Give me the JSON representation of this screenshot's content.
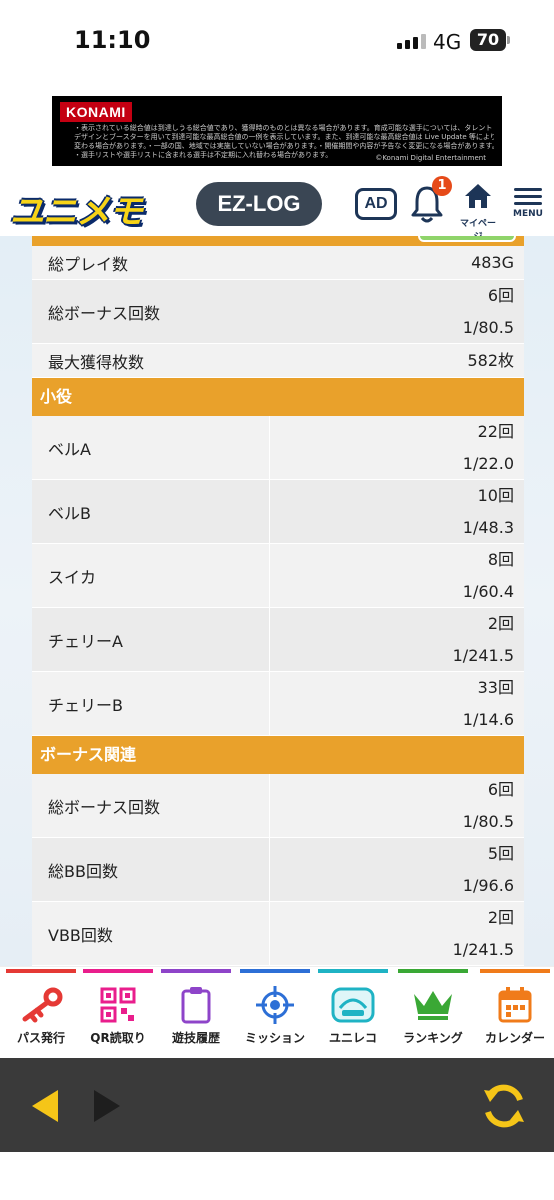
{
  "status_bar": {
    "time": "11:10",
    "network": "4G",
    "battery": "70"
  },
  "banner": {
    "brand": "KONAMI",
    "lines": [
      "・表示されている総合値は到達しうる総合値であり、獲得時のものとは異なる場合があります。育成可能な選手については、タレント",
      "デザインとブースターを用いて到達可能な最高総合値の一例を表示しています。また、到達可能な最高総合値は Live Update 等により",
      "変わる場合があります。・一部の国、地域では実施していない場合があります。・開催期間や内容が予告なく変更になる場合があります。",
      "・選手リストや選手リストに含まれる選手は不定期に入れ替わる場合があります。"
    ],
    "copyright": "©Konami Digital Entertainment"
  },
  "header": {
    "brand": "ユニメモ",
    "ezlog": "EZ-LOG",
    "ad": "AD",
    "notification_count": "1",
    "mypage": "マイページ",
    "menu": "MENU"
  },
  "summary": {
    "total_plays": {
      "label": "総プレイ数",
      "value": "483G"
    },
    "total_bonus": {
      "label": "総ボーナス回数",
      "count": "6回",
      "rate": "1/80.5"
    },
    "max_coins": {
      "label": "最大獲得枚数",
      "value": "582枚"
    }
  },
  "koyaku": {
    "title": "小役",
    "rows": [
      {
        "label": "ベルA",
        "count": "22回",
        "rate": "1/22.0"
      },
      {
        "label": "ベルB",
        "count": "10回",
        "rate": "1/48.3"
      },
      {
        "label": "スイカ",
        "count": "8回",
        "rate": "1/60.4"
      },
      {
        "label": "チェリーA",
        "count": "2回",
        "rate": "1/241.5"
      },
      {
        "label": "チェリーB",
        "count": "33回",
        "rate": "1/14.6"
      }
    ]
  },
  "bonus": {
    "title": "ボーナス関連",
    "rows": [
      {
        "label": "総ボーナス回数",
        "count": "6回",
        "rate": "1/80.5"
      },
      {
        "label": "総BB回数",
        "count": "5回",
        "rate": "1/96.6"
      },
      {
        "label": "VBB回数",
        "count": "2回",
        "rate": "1/241.5"
      }
    ]
  },
  "bottom_nav": [
    {
      "label": "パス発行",
      "icon": "key-icon",
      "color": "#e53935"
    },
    {
      "label": "QR読取り",
      "icon": "qr-code-icon",
      "color": "#e91e8c"
    },
    {
      "label": "遊技履歴",
      "icon": "clipboard-icon",
      "color": "#8e44c9"
    },
    {
      "label": "ミッション",
      "icon": "target-icon",
      "color": "#2d6fd6"
    },
    {
      "label": "ユニレコ",
      "icon": "unireco-logo-icon",
      "color": "#1fb3c4"
    },
    {
      "label": "ランキング",
      "icon": "crown-icon",
      "color": "#3aa835"
    },
    {
      "label": "カレンダー",
      "icon": "calendar-icon",
      "color": "#f07b1a"
    }
  ],
  "colors": {
    "section_header": "#e9a12b",
    "row_odd": "#f2f2f2",
    "row_even": "#ebebeb",
    "browser_bar": "#3a3a3a",
    "nav_arrow": "#f5c518"
  }
}
